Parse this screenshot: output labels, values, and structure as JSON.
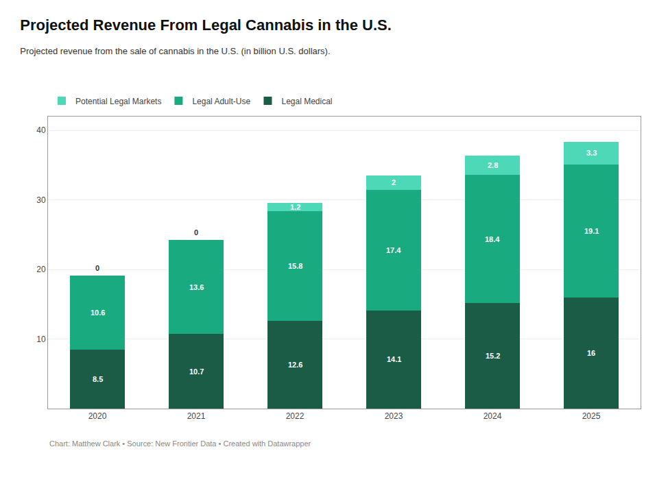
{
  "chart_data": {
    "type": "bar",
    "stacked": true,
    "title": "Projected Revenue From Legal Cannabis in the U.S.",
    "subtitle": "Projected revenue from the sale of cannabis in the U.S. (in billion U.S. dollars).",
    "caption": "Chart: Matthew Clark • Source: New Frontier Data • Created with Datawrapper",
    "categories": [
      "2020",
      "2021",
      "2022",
      "2023",
      "2024",
      "2025"
    ],
    "series": [
      {
        "name": "Legal Medical",
        "color": "#1a5c45",
        "values": [
          8.5,
          10.7,
          12.6,
          14.1,
          15.2,
          16.0
        ]
      },
      {
        "name": "Legal Adult-Use",
        "color": "#1aaa80",
        "values": [
          10.6,
          13.6,
          15.8,
          17.4,
          18.4,
          19.1
        ]
      },
      {
        "name": "Potential Legal Markets",
        "color": "#4dd9b8",
        "values": [
          0.0,
          0.0,
          1.2,
          2.0,
          2.8,
          3.3
        ]
      }
    ],
    "ylim": [
      0,
      42
    ],
    "yticks": [
      10,
      20,
      30,
      40
    ],
    "grid": true,
    "legend": "top",
    "data_labels": true
  }
}
